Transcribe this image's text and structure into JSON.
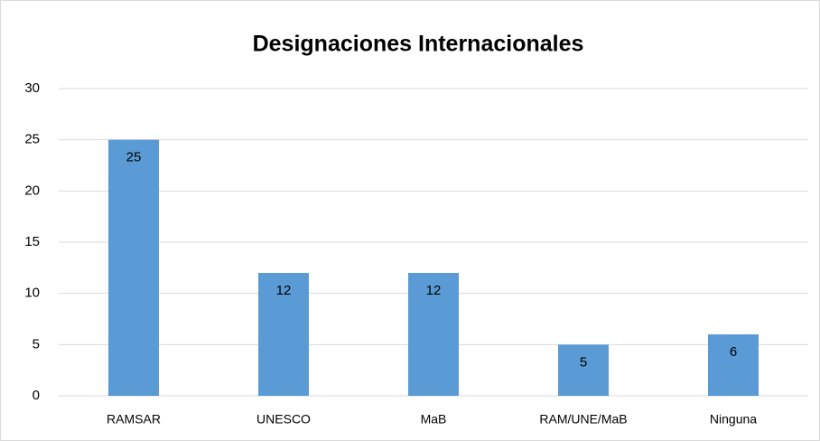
{
  "chart_data": {
    "type": "bar",
    "title": "Designaciones Internacionales",
    "categories": [
      "RAMSAR",
      "UNESCO",
      "MaB",
      "RAM/UNE/MaB",
      "Ninguna"
    ],
    "values": [
      25,
      12,
      12,
      5,
      6
    ],
    "color": "#5b9bd5",
    "ylim": [
      0,
      30
    ],
    "yticks": [
      0,
      5,
      10,
      15,
      20,
      25,
      30
    ],
    "grid": true
  }
}
